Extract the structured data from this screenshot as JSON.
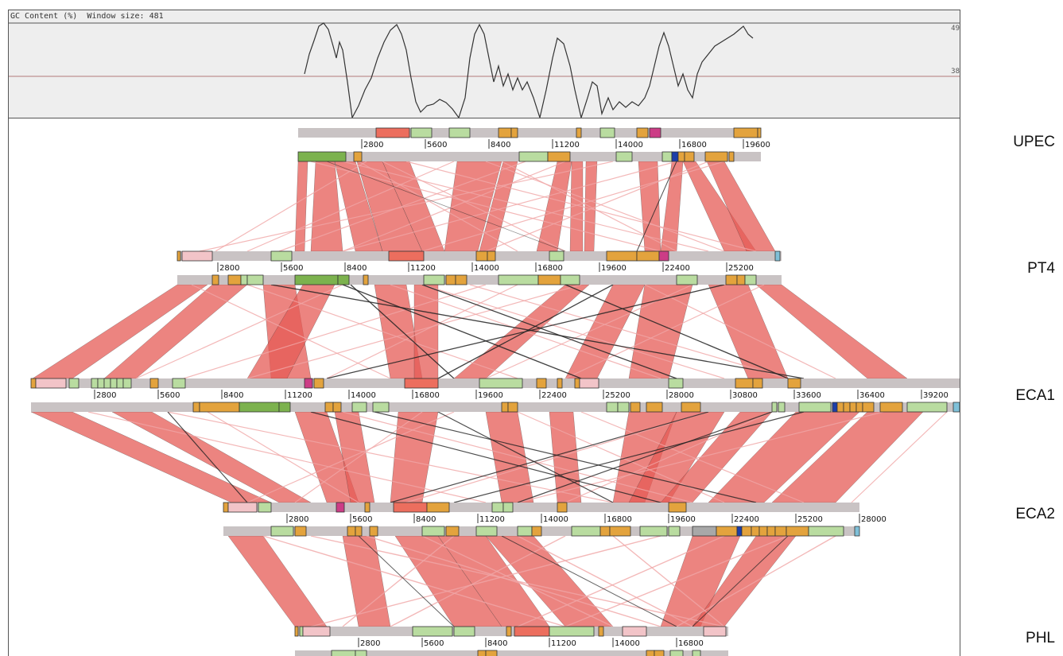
{
  "gc_panel": {
    "header": "GC Content (%)  Window size: 481",
    "tick_high": "49",
    "tick_mid": "38"
  },
  "genomes": [
    {
      "name": "UPEC",
      "ticks": [
        "2800",
        "5600",
        "8400",
        "11200",
        "14000",
        "16800",
        "19600"
      ]
    },
    {
      "name": "PT4",
      "ticks": [
        "2800",
        "5600",
        "8400",
        "11200",
        "14000",
        "16800",
        "19600",
        "22400",
        "25200"
      ]
    },
    {
      "name": "ECA1",
      "ticks": [
        "2800",
        "5600",
        "8400",
        "11200",
        "14000",
        "16800",
        "19600",
        "22400",
        "25200",
        "28000",
        "30800",
        "33600",
        "36400",
        "39200"
      ]
    },
    {
      "name": "ECA2",
      "ticks": [
        "2800",
        "5600",
        "8400",
        "11200",
        "14000",
        "16800",
        "19600",
        "22400",
        "25200",
        "28000"
      ]
    },
    {
      "name": "PHL",
      "ticks": [
        "2800",
        "5600",
        "8400",
        "11200",
        "14000",
        "16800"
      ]
    }
  ],
  "colors": {
    "backbone": "#c9c3c4",
    "feature_orange": "#e3a33d",
    "feature_lightgreen": "#b9dca0",
    "feature_green": "#7cb24e",
    "feature_pink": "#f2c4c8",
    "feature_red": "#ec6e5e",
    "feature_magenta": "#cc3d86",
    "feature_blue": "#1d3ea8",
    "feature_cyan": "#7fc0d8",
    "feature_gray": "#a8a8a8",
    "match_forward": "#e65b55",
    "match_light": "#f0a6a6",
    "match_inverted": "#222222"
  }
}
